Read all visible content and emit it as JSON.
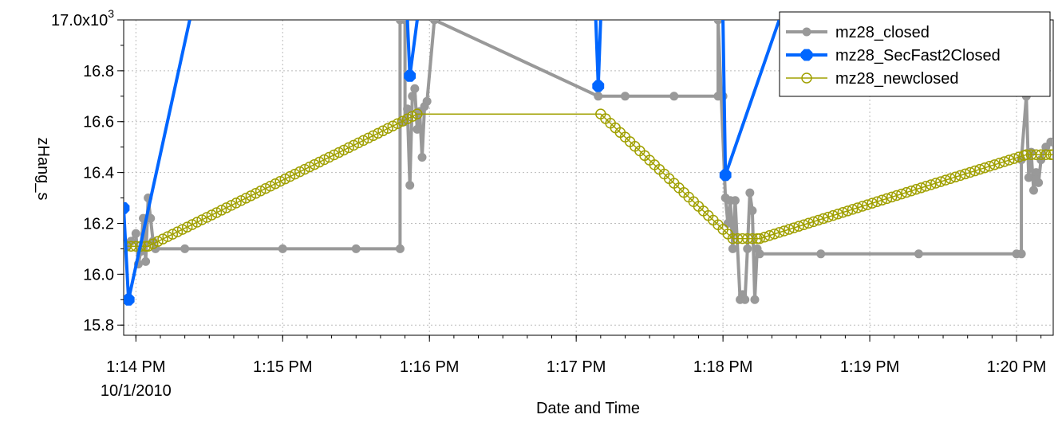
{
  "chart_data": {
    "type": "line",
    "xlabel": "Date and Time",
    "ylabel": "zHang_s",
    "ylim": [
      15.76,
      17.0
    ],
    "xlim": [
      "13:13:55",
      "13:20:15"
    ],
    "y_ticks": [
      {
        "value": 15.8,
        "label": "15.8"
      },
      {
        "value": 16.0,
        "label": "16.0"
      },
      {
        "value": 16.2,
        "label": "16.2"
      },
      {
        "value": 16.4,
        "label": "16.4"
      },
      {
        "value": 16.6,
        "label": "16.6"
      },
      {
        "value": 16.8,
        "label": "16.8"
      },
      {
        "value": 17.0,
        "label": "17.0x10",
        "sup": "3"
      }
    ],
    "x_ticks": [
      {
        "time": "13:14:00",
        "label": "1:14 PM",
        "sublabel": "10/1/2010"
      },
      {
        "time": "13:15:00",
        "label": "1:15 PM"
      },
      {
        "time": "13:16:00",
        "label": "1:16 PM"
      },
      {
        "time": "13:17:00",
        "label": "1:17 PM"
      },
      {
        "time": "13:18:00",
        "label": "1:18 PM"
      },
      {
        "time": "13:19:00",
        "label": "1:19 PM"
      },
      {
        "time": "13:20:00",
        "label": "1:20 PM"
      }
    ],
    "grid": true,
    "legend_position": "top-right",
    "series": [
      {
        "name": "mz28_closed",
        "color": "#999999",
        "marker": "filled-circle",
        "points": [
          [
            "13:13:56",
            16.11
          ],
          [
            "13:13:58",
            16.13
          ],
          [
            "13:14:00",
            16.16
          ],
          [
            "13:14:01",
            16.04
          ],
          [
            "13:14:02",
            16.09
          ],
          [
            "13:14:03",
            16.22
          ],
          [
            "13:14:04",
            16.05
          ],
          [
            "13:14:05",
            16.3
          ],
          [
            "13:14:06",
            16.22
          ],
          [
            "13:14:07",
            16.13
          ],
          [
            "13:14:08",
            16.1
          ],
          [
            "13:14:20",
            16.1
          ],
          [
            "13:15:00",
            16.1
          ],
          [
            "13:15:30",
            16.1
          ],
          [
            "13:15:48",
            16.1
          ],
          [
            "13:15:48",
            17.0
          ],
          [
            "13:15:50",
            17.0
          ],
          [
            "13:15:50",
            16.6
          ],
          [
            "13:15:51",
            16.65
          ],
          [
            "13:15:52",
            16.35
          ],
          [
            "13:15:53",
            16.7
          ],
          [
            "13:15:54",
            16.73
          ],
          [
            "13:15:55",
            16.57
          ],
          [
            "13:15:56",
            16.64
          ],
          [
            "13:15:57",
            16.46
          ],
          [
            "13:15:58",
            16.66
          ],
          [
            "13:15:59",
            16.68
          ],
          [
            "13:16:02",
            17.0
          ],
          [
            "13:17:09",
            16.7
          ],
          [
            "13:17:20",
            16.7
          ],
          [
            "13:17:40",
            16.7
          ],
          [
            "13:18:00",
            16.7
          ],
          [
            "13:17:58",
            16.7
          ],
          [
            "13:17:58",
            17.0
          ],
          [
            "13:18:01",
            16.3
          ],
          [
            "13:18:02",
            16.2
          ],
          [
            "13:18:03",
            16.29
          ],
          [
            "13:18:04",
            16.1
          ],
          [
            "13:18:05",
            16.29
          ],
          [
            "13:18:07",
            15.9
          ],
          [
            "13:18:08",
            15.92
          ],
          [
            "13:18:09",
            15.9
          ],
          [
            "13:18:10",
            16.1
          ],
          [
            "13:18:11",
            16.32
          ],
          [
            "13:18:12",
            16.25
          ],
          [
            "13:18:13",
            15.9
          ],
          [
            "13:18:14",
            16.1
          ],
          [
            "13:18:15",
            16.08
          ],
          [
            "13:18:40",
            16.08
          ],
          [
            "13:19:20",
            16.08
          ],
          [
            "13:20:00",
            16.08
          ],
          [
            "13:20:02",
            16.08
          ],
          [
            "13:20:02",
            16.45
          ],
          [
            "13:20:04",
            16.7
          ],
          [
            "13:20:05",
            16.38
          ],
          [
            "13:20:06",
            16.48
          ],
          [
            "13:20:07",
            16.33
          ],
          [
            "13:20:08",
            16.4
          ],
          [
            "13:20:09",
            16.36
          ],
          [
            "13:20:10",
            16.45
          ],
          [
            "13:20:12",
            16.5
          ],
          [
            "13:20:14",
            16.52
          ]
        ]
      },
      {
        "name": "mz28_SecFast2Closed",
        "color": "#0066ff",
        "marker": "filled-octagon",
        "points": [
          [
            "13:13:55",
            16.26
          ],
          [
            "13:13:57",
            15.9
          ],
          [
            "13:14:22",
            17.0
          ],
          null,
          [
            "13:15:51",
            17.0
          ],
          [
            "13:15:52",
            16.78
          ],
          [
            "13:15:55",
            17.0
          ],
          null,
          [
            "13:17:08",
            17.0
          ],
          [
            "13:17:09",
            16.74
          ],
          [
            "13:17:10",
            17.0
          ],
          null,
          [
            "13:18:00",
            17.0
          ],
          [
            "13:18:01",
            16.39
          ],
          [
            "13:18:23",
            17.0
          ]
        ]
      },
      {
        "name": "mz28_newclosed",
        "color": "#a0a000",
        "marker": "open-circle",
        "points": [
          [
            "13:13:56",
            16.11
          ],
          [
            "13:14:05",
            16.11
          ],
          [
            "13:15:55",
            16.63
          ],
          [
            "13:17:10",
            16.63
          ],
          [
            "13:18:04",
            16.14
          ],
          [
            "13:18:15",
            16.14
          ],
          [
            "13:20:04",
            16.47
          ],
          [
            "13:20:15",
            16.47
          ]
        ]
      }
    ]
  }
}
